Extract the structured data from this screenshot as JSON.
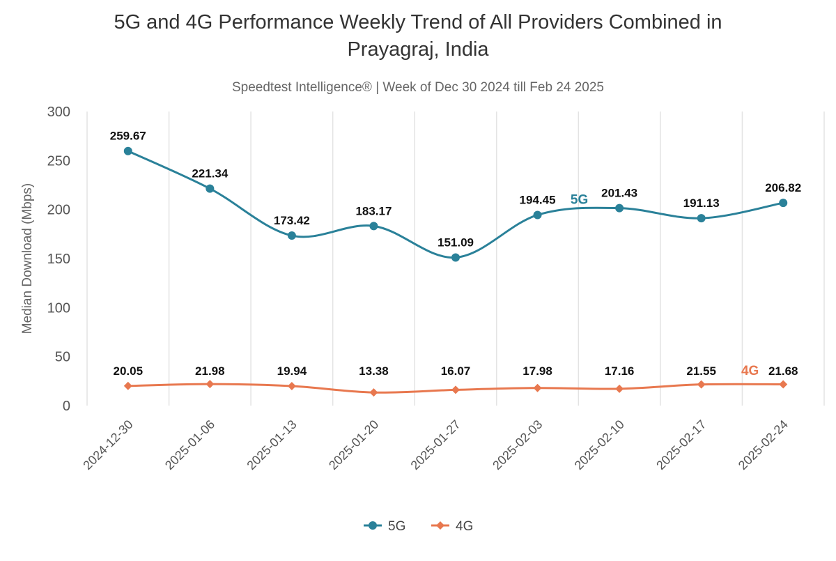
{
  "chart_data": {
    "type": "line",
    "title_line1": "5G and 4G Performance Weekly Trend of All Providers Combined in",
    "title_line2": "Prayagraj, India",
    "subtitle": "Speedtest Intelligence® | Week of Dec 30 2024 till Feb 24 2025",
    "ylabel": "Median Download (Mbps)",
    "xlabel": "",
    "ylim": [
      0,
      300
    ],
    "yticks": [
      0,
      50,
      100,
      150,
      200,
      250,
      300
    ],
    "grid": "vertical",
    "legend": "bottom",
    "categories": [
      "2024-12-30",
      "2025-01-06",
      "2025-01-13",
      "2025-01-20",
      "2025-01-27",
      "2025-02-03",
      "2025-02-10",
      "2025-02-17",
      "2025-02-24"
    ],
    "series": [
      {
        "name": "5G",
        "color": "#2a8199",
        "marker": "circle",
        "values": [
          259.67,
          221.34,
          173.42,
          183.17,
          151.09,
          194.45,
          201.43,
          191.13,
          206.82
        ]
      },
      {
        "name": "4G",
        "color": "#e8784f",
        "marker": "diamond",
        "values": [
          20.05,
          21.98,
          19.94,
          13.38,
          16.07,
          17.98,
          17.16,
          21.55,
          21.68
        ]
      }
    ]
  }
}
